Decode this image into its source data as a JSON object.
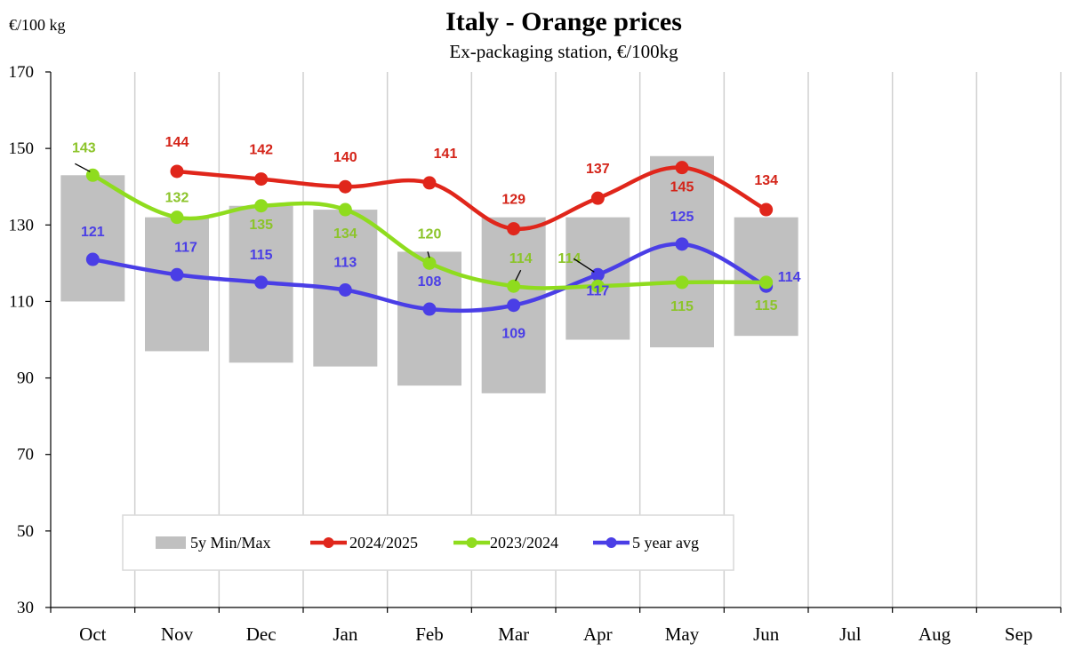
{
  "chart_data": {
    "type": "line",
    "title": "Italy  -  Orange prices",
    "subtitle": "Ex-packaging  station,  €/100kg",
    "ylabel": "€/100 kg",
    "ylim": [
      30,
      170
    ],
    "yticks": [
      30,
      50,
      70,
      90,
      110,
      130,
      150,
      170
    ],
    "categories": [
      "Oct",
      "Nov",
      "Dec",
      "Jan",
      "Feb",
      "Mar",
      "Apr",
      "May",
      "Jun",
      "Jul",
      "Aug",
      "Sep"
    ],
    "grid": "vertical",
    "legend_position": "bottom-left",
    "range": {
      "name": "5y Min/Max",
      "color": "#c0c0c0",
      "min": [
        110,
        97,
        94,
        93,
        88,
        86,
        100,
        98,
        101,
        null,
        null,
        null
      ],
      "max": [
        143,
        132,
        135,
        134,
        123,
        132,
        132,
        148,
        132,
        null,
        null,
        null
      ]
    },
    "series": [
      {
        "name": "2024/2025",
        "color": "#e0261b",
        "label_color": "#d42419",
        "values": [
          null,
          144,
          142,
          140,
          141,
          129,
          137,
          145,
          134,
          null,
          null,
          null
        ]
      },
      {
        "name": "2023/2024",
        "color": "#8fdc1e",
        "label_color": "#8cc42a",
        "values": [
          143,
          132,
          135,
          134,
          120,
          114,
          114,
          115,
          115,
          null,
          null,
          null
        ]
      },
      {
        "name": "5 year avg",
        "color": "#4a3ee6",
        "label_color": "#4a3ee6",
        "values": [
          121,
          117,
          115,
          113,
          108,
          109,
          117,
          125,
          114,
          null,
          null,
          null
        ]
      }
    ]
  }
}
